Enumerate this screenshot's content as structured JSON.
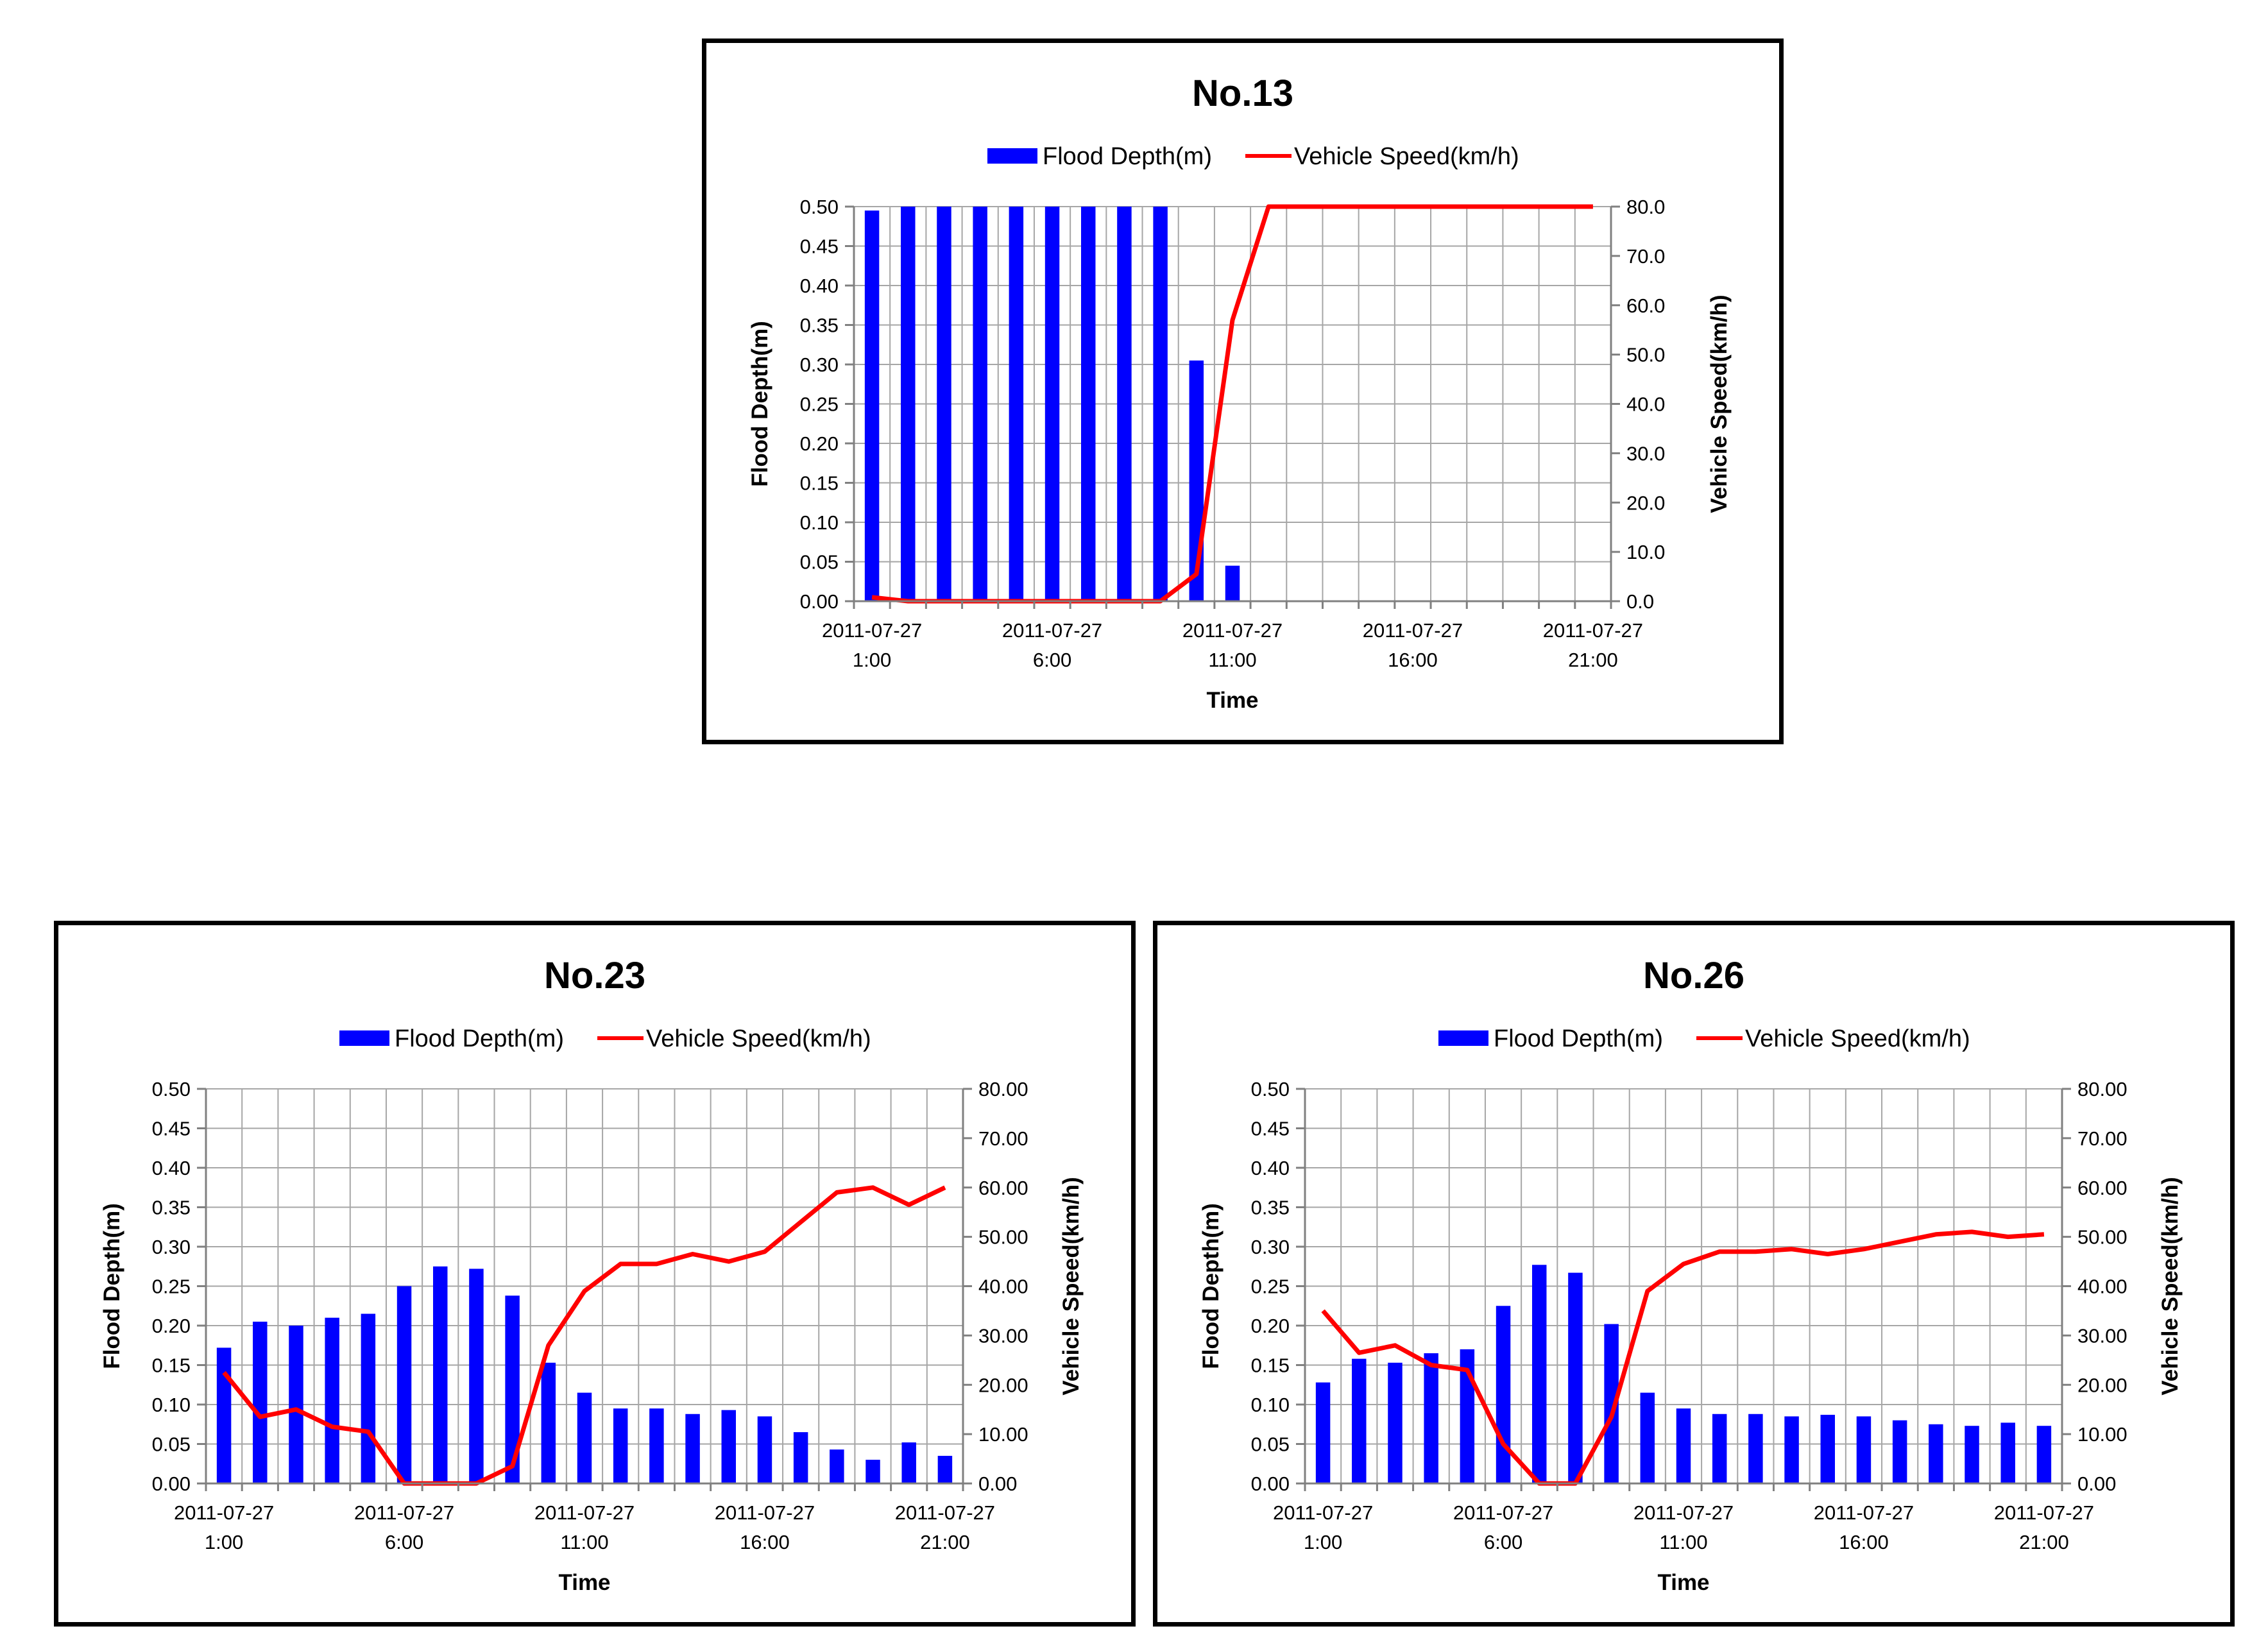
{
  "chart_data": [
    {
      "type": "bar+line",
      "title": "No.13",
      "legend": [
        "Flood Depth(m)",
        "Vehicle Speed(km/h)"
      ],
      "legend_position": "top-center",
      "xlabel": "Time",
      "ylabel": "Flood Depth(m)",
      "y2label": "Vehicle Speed(km/h)",
      "ylim": [
        0,
        0.5
      ],
      "y2lim": [
        0,
        80
      ],
      "yticks": [
        "0.00",
        "0.05",
        "0.10",
        "0.15",
        "0.20",
        "0.25",
        "0.30",
        "0.35",
        "0.40",
        "0.45",
        "0.50"
      ],
      "y2ticks": [
        "0.0",
        "10.0",
        "20.0",
        "30.0",
        "40.0",
        "50.0",
        "60.0",
        "70.0",
        "80.0"
      ],
      "xtick_dates": [
        "2011-07-27",
        "2011-07-27",
        "2011-07-27",
        "2011-07-27",
        "2011-07-27"
      ],
      "xtick_times": [
        "1:00",
        "6:00",
        "11:00",
        "16:00",
        "21:00"
      ],
      "x_hours": [
        1,
        2,
        3,
        4,
        5,
        6,
        7,
        8,
        9,
        10,
        11,
        12,
        13,
        14,
        15,
        16,
        17,
        18,
        19,
        20,
        21
      ],
      "series": [
        {
          "name": "Flood Depth(m)",
          "kind": "bar",
          "axis": "left",
          "color": "#0000ff",
          "values": [
            0.495,
            0.5,
            0.5,
            0.5,
            0.5,
            0.5,
            0.5,
            0.5,
            0.5,
            0.305,
            0.045,
            0,
            0,
            0,
            0,
            0,
            0,
            0,
            0,
            0,
            0
          ]
        },
        {
          "name": "Vehicle Speed(km/h)",
          "kind": "line",
          "axis": "right",
          "color": "#ff0000",
          "values": [
            0.8,
            0,
            0,
            0,
            0,
            0,
            0,
            0,
            0,
            5.5,
            57,
            80,
            80,
            80,
            80,
            80,
            80,
            80,
            80,
            80,
            80
          ]
        }
      ],
      "grid": true
    },
    {
      "type": "bar+line",
      "title": "No.23",
      "legend": [
        "Flood Depth(m)",
        "Vehicle Speed(km/h)"
      ],
      "legend_position": "top-center",
      "xlabel": "Time",
      "ylabel": "Flood Depth(m)",
      "y2label": "Vehicle Speed(km/h)",
      "ylim": [
        0,
        0.5
      ],
      "y2lim": [
        0,
        80
      ],
      "yticks": [
        "0.00",
        "0.05",
        "0.10",
        "0.15",
        "0.20",
        "0.25",
        "0.30",
        "0.35",
        "0.40",
        "0.45",
        "0.50"
      ],
      "y2ticks": [
        "0.00",
        "10.00",
        "20.00",
        "30.00",
        "40.00",
        "50.00",
        "60.00",
        "70.00",
        "80.00"
      ],
      "xtick_dates": [
        "2011-07-27",
        "2011-07-27",
        "2011-07-27",
        "2011-07-27",
        "2011-07-27"
      ],
      "xtick_times": [
        "1:00",
        "6:00",
        "11:00",
        "16:00",
        "21:00"
      ],
      "x_hours": [
        1,
        2,
        3,
        4,
        5,
        6,
        7,
        8,
        9,
        10,
        11,
        12,
        13,
        14,
        15,
        16,
        17,
        18,
        19,
        20,
        21
      ],
      "series": [
        {
          "name": "Flood Depth(m)",
          "kind": "bar",
          "axis": "left",
          "color": "#0000ff",
          "values": [
            0.172,
            0.205,
            0.2,
            0.21,
            0.215,
            0.25,
            0.275,
            0.272,
            0.238,
            0.153,
            0.115,
            0.095,
            0.095,
            0.088,
            0.093,
            0.085,
            0.065,
            0.043,
            0.03,
            0.052,
            0.035
          ]
        },
        {
          "name": "Vehicle Speed(km/h)",
          "kind": "line",
          "axis": "right",
          "color": "#ff0000",
          "values": [
            22.5,
            13.5,
            15,
            11.5,
            10.5,
            0,
            0,
            0,
            3.5,
            28,
            39,
            44.5,
            44.5,
            46.5,
            45,
            47,
            53,
            59,
            60,
            56.5,
            60
          ]
        }
      ],
      "grid": true
    },
    {
      "type": "bar+line",
      "title": "No.26",
      "legend": [
        "Flood Depth(m)",
        "Vehicle Speed(km/h)"
      ],
      "legend_position": "top-center",
      "xlabel": "Time",
      "ylabel": "Flood Depth(m)",
      "y2label": "Vehicle Speed(km/h)",
      "ylim": [
        0,
        0.5
      ],
      "y2lim": [
        0,
        80
      ],
      "yticks": [
        "0.00",
        "0.05",
        "0.10",
        "0.15",
        "0.20",
        "0.25",
        "0.30",
        "0.35",
        "0.40",
        "0.45",
        "0.50"
      ],
      "y2ticks": [
        "0.00",
        "10.00",
        "20.00",
        "30.00",
        "40.00",
        "50.00",
        "60.00",
        "70.00",
        "80.00"
      ],
      "xtick_dates": [
        "2011-07-27",
        "2011-07-27",
        "2011-07-27",
        "2011-07-27",
        "2011-07-27"
      ],
      "xtick_times": [
        "1:00",
        "6:00",
        "11:00",
        "16:00",
        "21:00"
      ],
      "x_hours": [
        1,
        2,
        3,
        4,
        5,
        6,
        7,
        8,
        9,
        10,
        11,
        12,
        13,
        14,
        15,
        16,
        17,
        18,
        19,
        20,
        21
      ],
      "series": [
        {
          "name": "Flood Depth(m)",
          "kind": "bar",
          "axis": "left",
          "color": "#0000ff",
          "values": [
            0.128,
            0.158,
            0.153,
            0.165,
            0.17,
            0.225,
            0.277,
            0.267,
            0.202,
            0.115,
            0.095,
            0.088,
            0.088,
            0.085,
            0.087,
            0.085,
            0.08,
            0.075,
            0.073,
            0.077,
            0.073
          ]
        },
        {
          "name": "Vehicle Speed(km/h)",
          "kind": "line",
          "axis": "right",
          "color": "#ff0000",
          "values": [
            35,
            26.5,
            28,
            24,
            23,
            8,
            0,
            0,
            13.5,
            39,
            44.5,
            47,
            47,
            47.5,
            46.5,
            47.5,
            49,
            50.5,
            51,
            50,
            50.5
          ]
        }
      ],
      "grid": true
    }
  ]
}
